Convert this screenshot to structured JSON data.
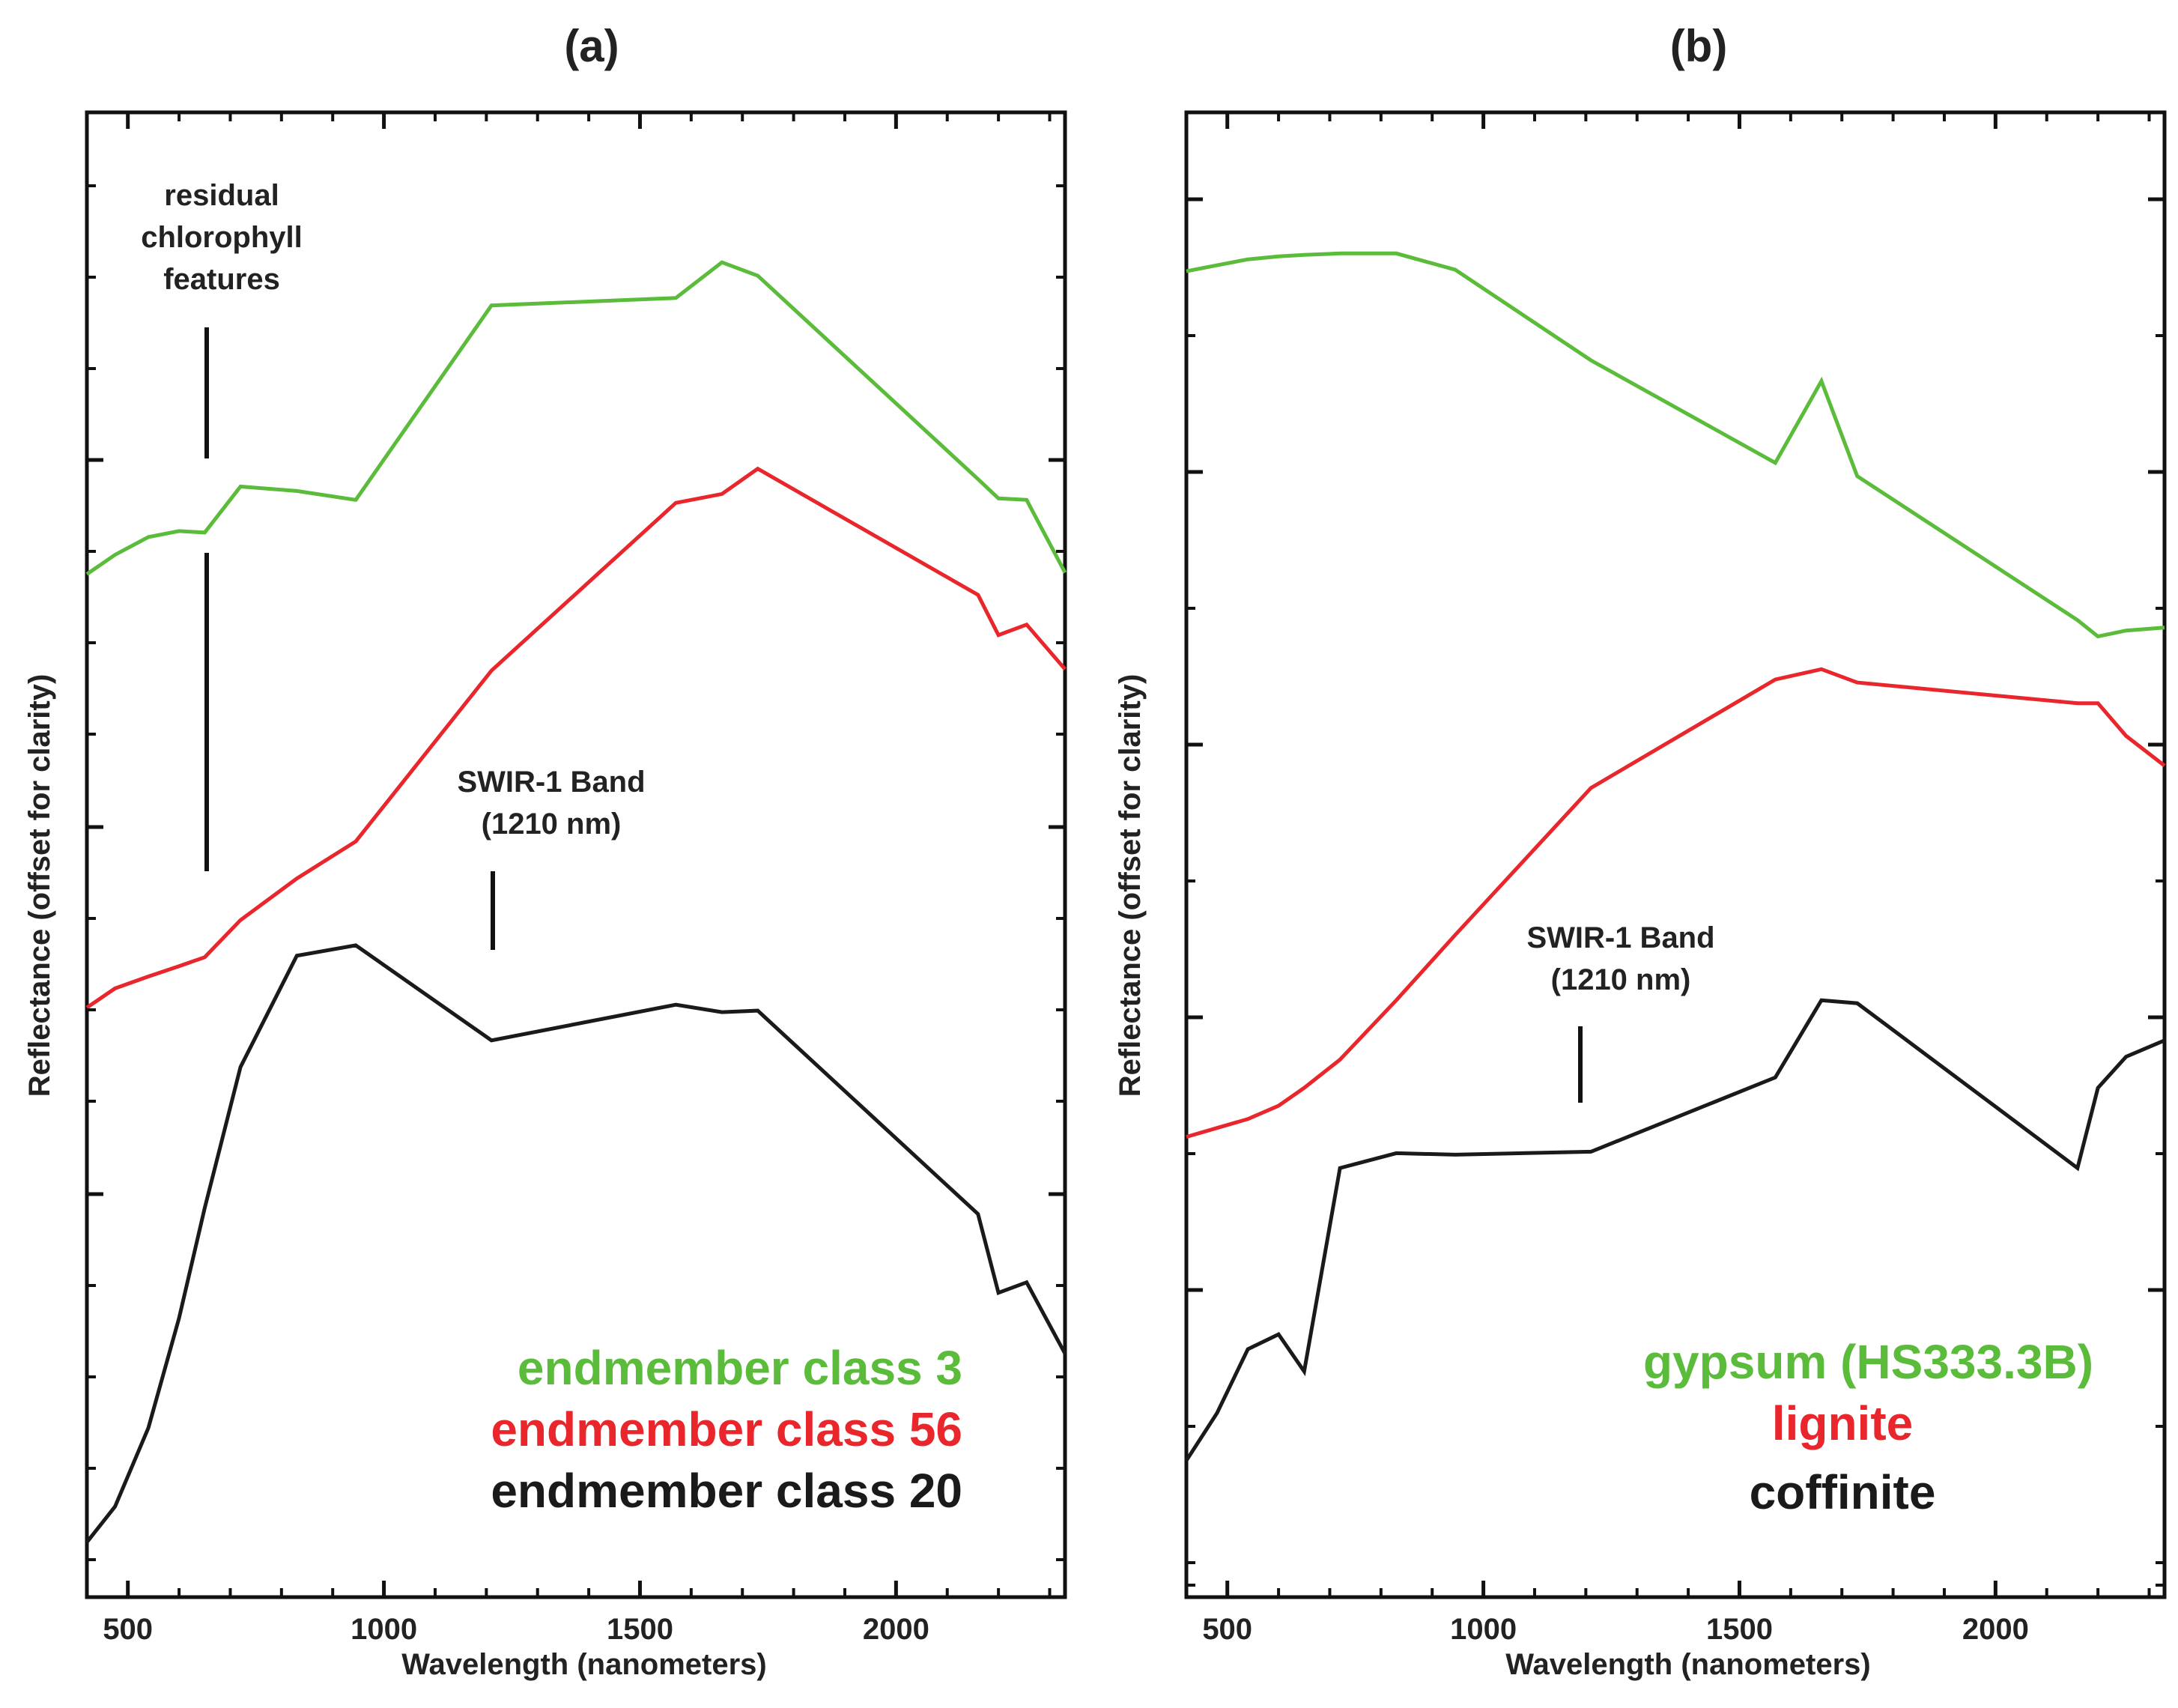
{
  "chart_data": [
    {
      "type": "line",
      "panel_label": "(a)",
      "xlabel": "Wavelength (nanometers)",
      "ylabel": "Reflectance (offset for clarity)",
      "xlim": [
        420,
        2330
      ],
      "ylim": [
        0,
        1
      ],
      "x_ticks": [
        500,
        1000,
        1500,
        2000
      ],
      "grid": false,
      "legend_position": "bottom-right",
      "series": [
        {
          "name": "endmember class 3",
          "color": "#5bbb3a",
          "x": [
            420,
            475,
            540,
            600,
            650,
            720,
            830,
            945,
            1210,
            1570,
            1660,
            1730,
            2160,
            2200,
            2255,
            2330
          ],
          "y": [
            0.689,
            0.702,
            0.714,
            0.718,
            0.717,
            0.748,
            0.745,
            0.739,
            0.87,
            0.875,
            0.899,
            0.89,
            0.753,
            0.74,
            0.739,
            0.69
          ]
        },
        {
          "name": "endmember class 56",
          "color": "#e8262b",
          "x": [
            420,
            475,
            540,
            600,
            650,
            720,
            830,
            945,
            1210,
            1570,
            1660,
            1730,
            2160,
            2200,
            2255,
            2330
          ],
          "y": [
            0.397,
            0.41,
            0.418,
            0.425,
            0.431,
            0.456,
            0.484,
            0.509,
            0.624,
            0.737,
            0.743,
            0.76,
            0.675,
            0.648,
            0.655,
            0.625
          ]
        },
        {
          "name": "endmember class 20",
          "color": "#1a1a1a",
          "x": [
            420,
            475,
            540,
            600,
            650,
            720,
            830,
            945,
            1210,
            1570,
            1660,
            1730,
            2160,
            2200,
            2255,
            2330
          ],
          "y": [
            0.037,
            0.061,
            0.114,
            0.188,
            0.262,
            0.357,
            0.432,
            0.439,
            0.375,
            0.399,
            0.394,
            0.395,
            0.258,
            0.205,
            0.212,
            0.164
          ]
        }
      ],
      "annotations": [
        {
          "text_lines": [
            "residual",
            "chlorophyll",
            "features"
          ],
          "marker_x": 655
        },
        {
          "text_lines": [
            "SWIR-1 Band",
            "(1210 nm)"
          ],
          "marker_x": 1215
        }
      ]
    },
    {
      "type": "line",
      "panel_label": "(b)",
      "xlabel": "Wavelength (nanometers)",
      "ylabel": "Reflectance (offset for clarity)",
      "xlim": [
        420,
        2330
      ],
      "ylim": [
        0,
        1
      ],
      "x_ticks": [
        500,
        1000,
        1500,
        2000
      ],
      "grid": false,
      "legend_position": "bottom-right",
      "series": [
        {
          "name": "gypsum (HS333.3B)",
          "color": "#5bbb3a",
          "x": [
            420,
            480,
            540,
            600,
            650,
            720,
            830,
            945,
            1210,
            1570,
            1660,
            1730,
            2160,
            2200,
            2255,
            2330
          ],
          "y": [
            0.893,
            0.897,
            0.901,
            0.903,
            0.904,
            0.905,
            0.905,
            0.894,
            0.833,
            0.764,
            0.819,
            0.755,
            0.658,
            0.647,
            0.651,
            0.653
          ]
        },
        {
          "name": "lignite",
          "color": "#e8262b",
          "x": [
            420,
            480,
            540,
            600,
            650,
            720,
            830,
            945,
            1210,
            1570,
            1660,
            1730,
            2160,
            2200,
            2255,
            2330
          ],
          "y": [
            0.31,
            0.316,
            0.322,
            0.331,
            0.343,
            0.362,
            0.402,
            0.446,
            0.545,
            0.618,
            0.625,
            0.616,
            0.602,
            0.602,
            0.58,
            0.56
          ]
        },
        {
          "name": "coffinite",
          "color": "#1a1a1a",
          "x": [
            420,
            480,
            540,
            600,
            650,
            720,
            830,
            945,
            1210,
            1570,
            1660,
            1730,
            2160,
            2200,
            2255,
            2330
          ],
          "y": [
            0.092,
            0.124,
            0.167,
            0.177,
            0.152,
            0.289,
            0.299,
            0.298,
            0.3,
            0.35,
            0.402,
            0.4,
            0.289,
            0.343,
            0.364,
            0.375
          ]
        }
      ],
      "annotations": [
        {
          "text_lines": [
            "SWIR-1 Band",
            "(1210 nm)"
          ],
          "marker_x": 1200
        }
      ]
    }
  ]
}
